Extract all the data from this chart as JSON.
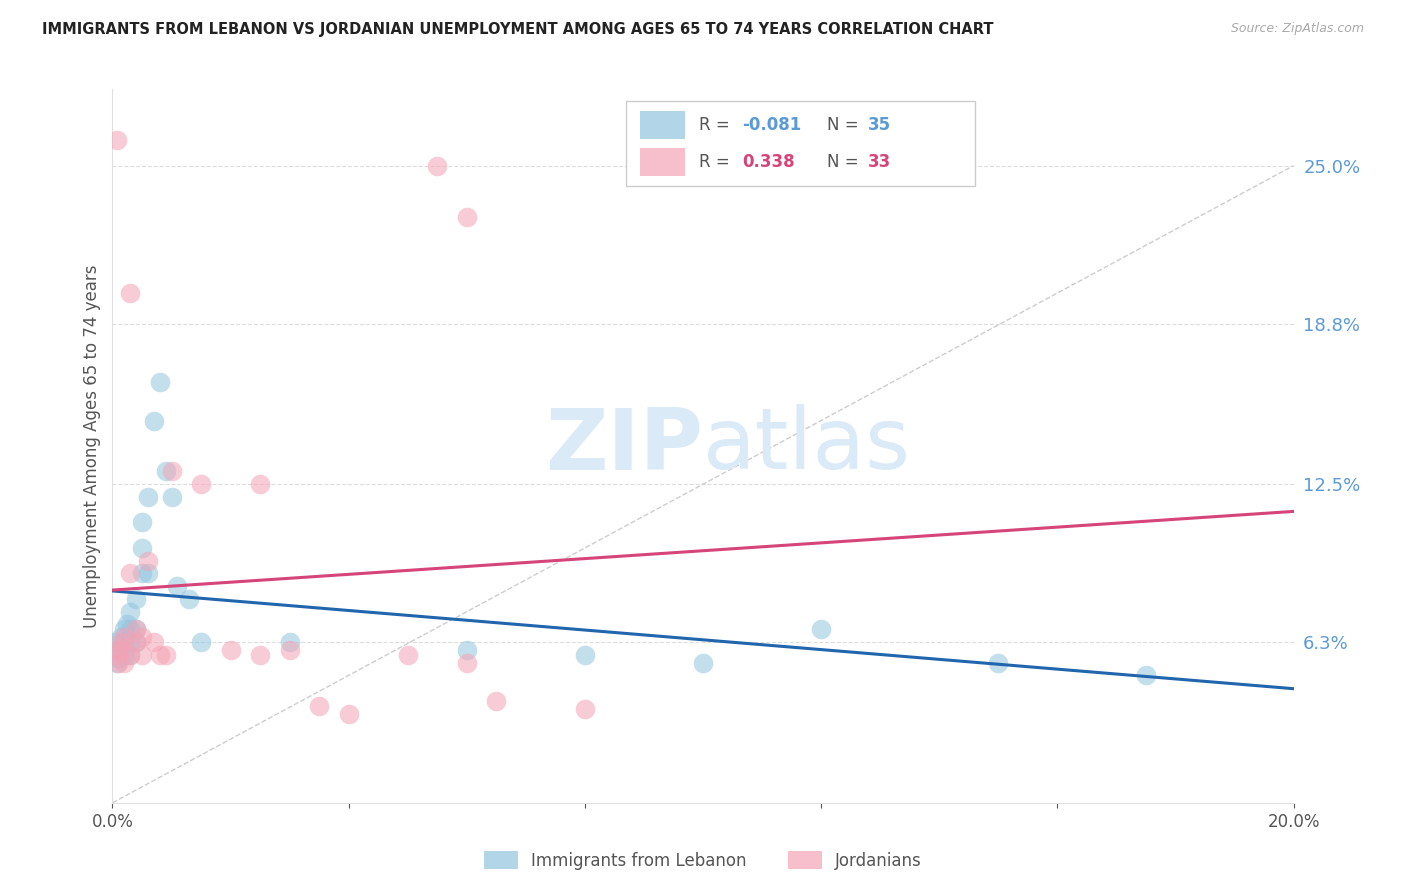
{
  "title": "IMMIGRANTS FROM LEBANON VS JORDANIAN UNEMPLOYMENT AMONG AGES 65 TO 74 YEARS CORRELATION CHART",
  "source": "Source: ZipAtlas.com",
  "ylabel": "Unemployment Among Ages 65 to 74 years",
  "xmin": 0.0,
  "xmax": 0.2,
  "ymin": 0.0,
  "ymax": 0.28,
  "yticks": [
    0.063,
    0.125,
    0.188,
    0.25
  ],
  "ytick_labels": [
    "6.3%",
    "12.5%",
    "18.8%",
    "25.0%"
  ],
  "blue_color": "#92c5de",
  "pink_color": "#f4a3b5",
  "blue_line_color": "#2166ac",
  "pink_line_color": "#d6457a",
  "watermark_color": "#daeaf7",
  "blue_scatter_x": [
    0.0005,
    0.001,
    0.001,
    0.0015,
    0.002,
    0.002,
    0.002,
    0.0025,
    0.003,
    0.003,
    0.003,
    0.003,
    0.004,
    0.004,
    0.004,
    0.005,
    0.005,
    0.005,
    0.006,
    0.006,
    0.007,
    0.008,
    0.009,
    0.01,
    0.011,
    0.013,
    0.015,
    0.03,
    0.06,
    0.08,
    0.1,
    0.12,
    0.15,
    0.175,
    0.0008
  ],
  "blue_scatter_y": [
    0.063,
    0.06,
    0.057,
    0.065,
    0.058,
    0.063,
    0.068,
    0.07,
    0.058,
    0.063,
    0.068,
    0.075,
    0.063,
    0.068,
    0.08,
    0.09,
    0.1,
    0.11,
    0.09,
    0.12,
    0.15,
    0.165,
    0.13,
    0.12,
    0.085,
    0.08,
    0.063,
    0.063,
    0.06,
    0.058,
    0.055,
    0.068,
    0.055,
    0.05,
    0.055
  ],
  "pink_scatter_x": [
    0.0005,
    0.001,
    0.001,
    0.0015,
    0.002,
    0.002,
    0.002,
    0.003,
    0.003,
    0.004,
    0.004,
    0.005,
    0.005,
    0.006,
    0.007,
    0.008,
    0.009,
    0.01,
    0.015,
    0.02,
    0.025,
    0.025,
    0.03,
    0.035,
    0.04,
    0.05,
    0.055,
    0.06,
    0.06,
    0.065,
    0.08,
    0.0008,
    0.003
  ],
  "pink_scatter_y": [
    0.058,
    0.06,
    0.055,
    0.063,
    0.055,
    0.06,
    0.065,
    0.058,
    0.09,
    0.063,
    0.068,
    0.058,
    0.065,
    0.095,
    0.063,
    0.058,
    0.058,
    0.13,
    0.125,
    0.06,
    0.125,
    0.058,
    0.06,
    0.038,
    0.035,
    0.058,
    0.25,
    0.23,
    0.055,
    0.04,
    0.037,
    0.26,
    0.2
  ]
}
